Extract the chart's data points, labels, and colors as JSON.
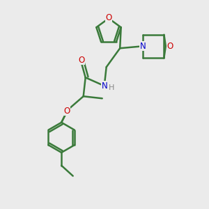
{
  "bg_color": "#ebebeb",
  "bond_color": "#3a7a3a",
  "atom_colors": {
    "O": "#cc0000",
    "N": "#0000cc",
    "H": "#888888",
    "C": "#3a7a3a"
  },
  "line_width": 1.8,
  "figsize": [
    3.0,
    3.0
  ],
  "dpi": 100
}
